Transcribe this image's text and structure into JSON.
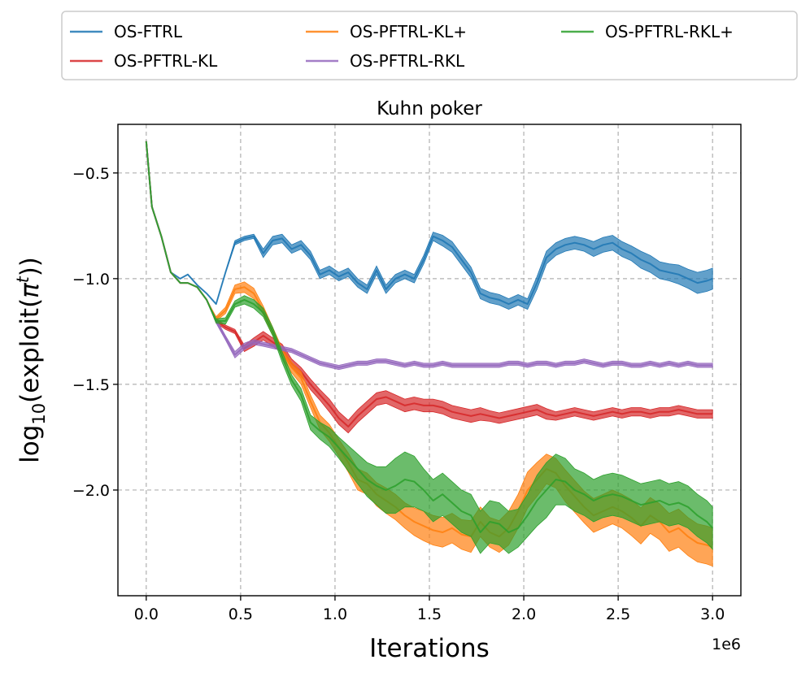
{
  "chart_data": {
    "type": "line",
    "title": "Kuhn poker",
    "xlabel": "Iterations",
    "ylabel_parts": {
      "prefix": "log",
      "subscript": "10",
      "body": "(exploit(",
      "pi": "π",
      "superscript": "t",
      "suffix": "))"
    },
    "x_offset_label": "1e6",
    "xlim": [
      -0.15,
      3.15
    ],
    "ylim": [
      -2.5,
      -0.27
    ],
    "x_ticks": [
      0.0,
      0.5,
      1.0,
      1.5,
      2.0,
      2.5,
      3.0
    ],
    "x_tick_labels": [
      "0.0",
      "0.5",
      "1.0",
      "1.5",
      "2.0",
      "2.5",
      "3.0"
    ],
    "y_ticks": [
      -0.5,
      -1.0,
      -1.5,
      -2.0
    ],
    "y_tick_labels": [
      "−0.5",
      "−1.0",
      "−1.5",
      "−2.0"
    ],
    "grid": true,
    "legend_position": "top (outside, 3 columns)",
    "x": [
      0.0,
      0.03,
      0.08,
      0.13,
      0.18,
      0.22,
      0.27,
      0.32,
      0.37,
      0.42,
      0.47,
      0.52,
      0.57,
      0.62,
      0.67,
      0.72,
      0.77,
      0.82,
      0.87,
      0.92,
      0.97,
      1.02,
      1.07,
      1.12,
      1.17,
      1.22,
      1.27,
      1.32,
      1.37,
      1.42,
      1.47,
      1.52,
      1.57,
      1.62,
      1.67,
      1.72,
      1.77,
      1.82,
      1.87,
      1.92,
      1.97,
      2.02,
      2.07,
      2.12,
      2.17,
      2.22,
      2.27,
      2.32,
      2.37,
      2.42,
      2.47,
      2.52,
      2.57,
      2.62,
      2.67,
      2.72,
      2.77,
      2.82,
      2.87,
      2.92,
      2.97,
      3.0
    ],
    "series": [
      {
        "name": "OS-FTRL",
        "color": "#1f77b4",
        "values": [
          -0.35,
          -0.66,
          -0.8,
          -0.97,
          -1.0,
          -0.98,
          -1.03,
          -1.07,
          -1.12,
          -0.97,
          -0.83,
          -0.81,
          -0.8,
          -0.88,
          -0.82,
          -0.81,
          -0.86,
          -0.84,
          -0.89,
          -0.98,
          -0.96,
          -0.99,
          -0.97,
          -1.02,
          -1.05,
          -0.96,
          -1.05,
          -1.0,
          -0.98,
          -1.0,
          -0.91,
          -0.8,
          -0.82,
          -0.85,
          -0.91,
          -0.97,
          -1.07,
          -1.09,
          -1.1,
          -1.12,
          -1.1,
          -1.12,
          -1.02,
          -0.9,
          -0.86,
          -0.84,
          -0.83,
          -0.84,
          -0.86,
          -0.84,
          -0.83,
          -0.86,
          -0.88,
          -0.91,
          -0.93,
          -0.96,
          -0.97,
          -0.98,
          -1.0,
          -1.02,
          -1.01,
          -1.0
        ],
        "spread": [
          0.0,
          0.0,
          0.0,
          0.0,
          0.0,
          0.0,
          0.0,
          0.0,
          0.0,
          0.0,
          0.01,
          0.01,
          0.01,
          0.02,
          0.02,
          0.02,
          0.02,
          0.02,
          0.02,
          0.02,
          0.02,
          0.02,
          0.02,
          0.02,
          0.02,
          0.02,
          0.02,
          0.02,
          0.02,
          0.02,
          0.02,
          0.02,
          0.025,
          0.025,
          0.025,
          0.025,
          0.025,
          0.025,
          0.025,
          0.025,
          0.025,
          0.025,
          0.03,
          0.03,
          0.03,
          0.03,
          0.03,
          0.03,
          0.035,
          0.035,
          0.035,
          0.035,
          0.035,
          0.04,
          0.04,
          0.04,
          0.04,
          0.045,
          0.045,
          0.05,
          0.05,
          0.05
        ]
      },
      {
        "name": "OS-PFTRL-KL",
        "color": "#d62728",
        "values": [
          -0.35,
          -0.66,
          -0.8,
          -0.97,
          -1.02,
          -1.02,
          -1.04,
          -1.1,
          -1.2,
          -1.23,
          -1.25,
          -1.33,
          -1.3,
          -1.27,
          -1.3,
          -1.33,
          -1.4,
          -1.44,
          -1.5,
          -1.55,
          -1.6,
          -1.66,
          -1.7,
          -1.65,
          -1.61,
          -1.57,
          -1.56,
          -1.58,
          -1.6,
          -1.59,
          -1.6,
          -1.6,
          -1.61,
          -1.63,
          -1.64,
          -1.65,
          -1.64,
          -1.65,
          -1.66,
          -1.65,
          -1.64,
          -1.63,
          -1.62,
          -1.64,
          -1.65,
          -1.64,
          -1.63,
          -1.64,
          -1.65,
          -1.64,
          -1.63,
          -1.64,
          -1.63,
          -1.63,
          -1.64,
          -1.63,
          -1.63,
          -1.62,
          -1.63,
          -1.64,
          -1.64,
          -1.64
        ],
        "spread": [
          0.0,
          0.0,
          0.0,
          0.0,
          0.0,
          0.0,
          0.0,
          0.0,
          0.01,
          0.01,
          0.01,
          0.015,
          0.02,
          0.02,
          0.02,
          0.02,
          0.02,
          0.02,
          0.025,
          0.025,
          0.03,
          0.03,
          0.03,
          0.03,
          0.03,
          0.03,
          0.03,
          0.03,
          0.03,
          0.03,
          0.03,
          0.03,
          0.03,
          0.03,
          0.03,
          0.03,
          0.03,
          0.025,
          0.025,
          0.025,
          0.025,
          0.025,
          0.025,
          0.025,
          0.02,
          0.02,
          0.02,
          0.02,
          0.02,
          0.02,
          0.02,
          0.02,
          0.02,
          0.02,
          0.02,
          0.02,
          0.02,
          0.02,
          0.02,
          0.02,
          0.02,
          0.02
        ]
      },
      {
        "name": "OS-PFTRL-KL+",
        "color": "#ff7f0e",
        "values": [
          -0.35,
          -0.66,
          -0.8,
          -0.97,
          -1.02,
          -1.02,
          -1.04,
          -1.1,
          -1.19,
          -1.15,
          -1.05,
          -1.04,
          -1.07,
          -1.15,
          -1.25,
          -1.35,
          -1.42,
          -1.47,
          -1.58,
          -1.68,
          -1.73,
          -1.8,
          -1.87,
          -1.95,
          -1.97,
          -2.02,
          -2.05,
          -2.08,
          -2.12,
          -2.15,
          -2.17,
          -2.19,
          -2.2,
          -2.18,
          -2.21,
          -2.22,
          -2.15,
          -2.2,
          -2.22,
          -2.18,
          -2.1,
          -2.0,
          -1.95,
          -1.9,
          -1.92,
          -1.98,
          -2.03,
          -2.08,
          -2.12,
          -2.1,
          -2.08,
          -2.1,
          -2.13,
          -2.17,
          -2.12,
          -2.15,
          -2.2,
          -2.18,
          -2.22,
          -2.25,
          -2.26,
          -2.27
        ],
        "spread": [
          0.0,
          0.0,
          0.0,
          0.0,
          0.0,
          0.0,
          0.0,
          0.0,
          0.01,
          0.015,
          0.02,
          0.025,
          0.025,
          0.02,
          0.02,
          0.02,
          0.025,
          0.03,
          0.03,
          0.035,
          0.04,
          0.04,
          0.045,
          0.05,
          0.05,
          0.055,
          0.06,
          0.06,
          0.06,
          0.065,
          0.07,
          0.07,
          0.07,
          0.07,
          0.07,
          0.075,
          0.07,
          0.07,
          0.075,
          0.08,
          0.08,
          0.085,
          0.08,
          0.07,
          0.07,
          0.075,
          0.075,
          0.075,
          0.08,
          0.08,
          0.08,
          0.08,
          0.085,
          0.085,
          0.085,
          0.085,
          0.09,
          0.09,
          0.09,
          0.09,
          0.09,
          0.09
        ]
      },
      {
        "name": "OS-PFTRL-RKL",
        "color": "#9467bd",
        "values": [
          -0.35,
          -0.66,
          -0.8,
          -0.97,
          -1.02,
          -1.02,
          -1.04,
          -1.1,
          -1.2,
          -1.28,
          -1.36,
          -1.32,
          -1.3,
          -1.31,
          -1.32,
          -1.33,
          -1.34,
          -1.36,
          -1.38,
          -1.4,
          -1.41,
          -1.42,
          -1.41,
          -1.4,
          -1.4,
          -1.39,
          -1.39,
          -1.4,
          -1.41,
          -1.4,
          -1.41,
          -1.41,
          -1.4,
          -1.41,
          -1.41,
          -1.41,
          -1.41,
          -1.41,
          -1.41,
          -1.4,
          -1.4,
          -1.41,
          -1.4,
          -1.4,
          -1.41,
          -1.4,
          -1.4,
          -1.39,
          -1.4,
          -1.41,
          -1.4,
          -1.4,
          -1.41,
          -1.41,
          -1.4,
          -1.41,
          -1.4,
          -1.41,
          -1.4,
          -1.41,
          -1.41,
          -1.41
        ],
        "spread": [
          0.0,
          0.0,
          0.0,
          0.0,
          0.0,
          0.0,
          0.0,
          0.0,
          0.01,
          0.01,
          0.015,
          0.015,
          0.012,
          0.01,
          0.01,
          0.01,
          0.01,
          0.01,
          0.01,
          0.01,
          0.01,
          0.01,
          0.01,
          0.01,
          0.01,
          0.01,
          0.01,
          0.01,
          0.01,
          0.01,
          0.01,
          0.01,
          0.01,
          0.01,
          0.01,
          0.01,
          0.01,
          0.01,
          0.01,
          0.01,
          0.01,
          0.01,
          0.01,
          0.01,
          0.01,
          0.01,
          0.01,
          0.01,
          0.01,
          0.01,
          0.01,
          0.01,
          0.01,
          0.01,
          0.01,
          0.01,
          0.01,
          0.01,
          0.01,
          0.01,
          0.01,
          0.01
        ]
      },
      {
        "name": "OS-PFTRL-RKL+",
        "color": "#2ca02c",
        "values": [
          -0.35,
          -0.66,
          -0.8,
          -0.97,
          -1.02,
          -1.02,
          -1.04,
          -1.1,
          -1.2,
          -1.2,
          -1.12,
          -1.1,
          -1.12,
          -1.16,
          -1.25,
          -1.37,
          -1.48,
          -1.55,
          -1.68,
          -1.72,
          -1.75,
          -1.8,
          -1.85,
          -1.9,
          -1.95,
          -1.98,
          -2.0,
          -1.98,
          -1.95,
          -1.96,
          -2.0,
          -2.05,
          -2.02,
          -2.06,
          -2.1,
          -2.12,
          -2.2,
          -2.15,
          -2.16,
          -2.2,
          -2.18,
          -2.12,
          -2.05,
          -2.0,
          -1.95,
          -1.96,
          -2.0,
          -2.02,
          -2.05,
          -2.03,
          -2.02,
          -2.03,
          -2.05,
          -2.07,
          -2.06,
          -2.05,
          -2.07,
          -2.06,
          -2.08,
          -2.12,
          -2.15,
          -2.18
        ],
        "spread": [
          0.0,
          0.0,
          0.0,
          0.0,
          0.0,
          0.0,
          0.0,
          0.0,
          0.01,
          0.015,
          0.015,
          0.02,
          0.02,
          0.02,
          0.02,
          0.025,
          0.025,
          0.03,
          0.035,
          0.04,
          0.045,
          0.05,
          0.06,
          0.07,
          0.08,
          0.09,
          0.11,
          0.13,
          0.13,
          0.12,
          0.1,
          0.1,
          0.1,
          0.1,
          0.1,
          0.1,
          0.1,
          0.1,
          0.1,
          0.1,
          0.09,
          0.1,
          0.12,
          0.13,
          0.12,
          0.11,
          0.1,
          0.1,
          0.1,
          0.1,
          0.1,
          0.1,
          0.1,
          0.1,
          0.1,
          0.1,
          0.1,
          0.1,
          0.1,
          0.1,
          0.1,
          0.1
        ]
      }
    ]
  }
}
